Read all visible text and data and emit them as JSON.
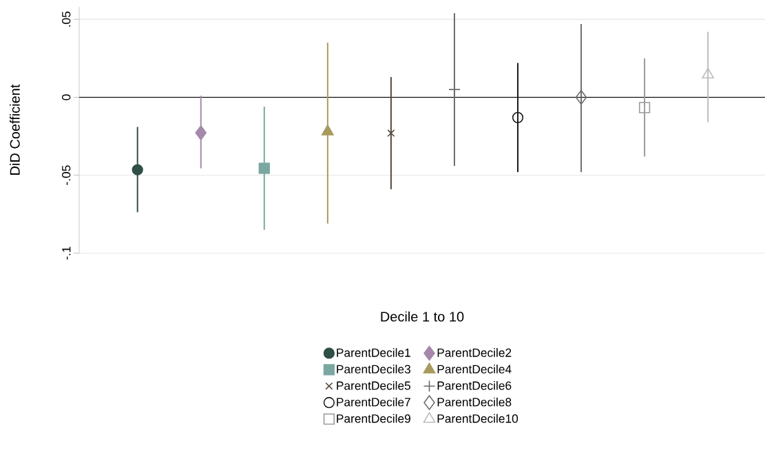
{
  "chart_data": {
    "type": "scatter",
    "xlabel": "Decile 1 to 10",
    "ylabel": "DiD Coefficient",
    "categories": [
      null,
      null,
      null,
      null,
      null,
      null,
      null,
      null,
      null,
      null
    ],
    "ylim": [
      -0.1,
      0.058
    ],
    "yticks": [
      {
        "value": -0.1,
        "label": "-.1"
      },
      {
        "value": -0.05,
        "label": "-.05"
      },
      {
        "value": 0,
        "label": "0"
      },
      {
        "value": 0.05,
        "label": ".05"
      }
    ],
    "grid": "y",
    "legend": "bottom",
    "ref_lines": [
      {
        "axis": "y",
        "value": 0,
        "color": "#000000"
      }
    ],
    "series": [
      {
        "name": "ParentDecile1",
        "color": "#2f4f47",
        "marker": "circle",
        "values": [
          -0.0465,
          null,
          null,
          null,
          null,
          null,
          null,
          null,
          null,
          null
        ],
        "errors": [
          [
            -0.0737,
            -0.019
          ],
          null,
          null,
          null,
          null,
          null,
          null,
          null,
          null,
          null
        ]
      },
      {
        "name": "ParentDecile2",
        "color": "#a688ac",
        "marker": "diamond",
        "values": [
          null,
          -0.0228,
          null,
          null,
          null,
          null,
          null,
          null,
          null,
          null
        ],
        "errors": [
          null,
          [
            -0.0456,
            0.001
          ],
          null,
          null,
          null,
          null,
          null,
          null,
          null,
          null
        ]
      },
      {
        "name": "ParentDecile3",
        "color": "#7aa8a0",
        "marker": "square",
        "values": [
          null,
          null,
          -0.0456,
          null,
          null,
          null,
          null,
          null,
          null,
          null
        ],
        "errors": [
          null,
          null,
          [
            -0.085,
            -0.006
          ],
          null,
          null,
          null,
          null,
          null,
          null,
          null
        ]
      },
      {
        "name": "ParentDecile4",
        "color": "#a89a5e",
        "marker": "triangle",
        "values": [
          null,
          null,
          null,
          -0.022,
          null,
          null,
          null,
          null,
          null,
          null
        ],
        "errors": [
          null,
          null,
          null,
          [
            -0.081,
            0.035
          ],
          null,
          null,
          null,
          null,
          null,
          null
        ]
      },
      {
        "name": "ParentDecile5",
        "color": "#54483a",
        "marker": "cross",
        "values": [
          null,
          null,
          null,
          null,
          -0.023,
          null,
          null,
          null,
          null,
          null
        ],
        "errors": [
          null,
          null,
          null,
          null,
          [
            -0.059,
            0.013
          ],
          null,
          null,
          null,
          null,
          null
        ]
      },
      {
        "name": "ParentDecile6",
        "color": "#6b6b6b",
        "marker": "plus",
        "values": [
          null,
          null,
          null,
          null,
          null,
          0.005,
          null,
          null,
          null,
          null
        ],
        "errors": [
          null,
          null,
          null,
          null,
          null,
          [
            -0.044,
            0.054
          ],
          null,
          null,
          null,
          null
        ]
      },
      {
        "name": "ParentDecile7",
        "color": "#1a1a1a",
        "marker": "circle_open",
        "values": [
          null,
          null,
          null,
          null,
          null,
          null,
          -0.013,
          null,
          null,
          null
        ],
        "errors": [
          null,
          null,
          null,
          null,
          null,
          null,
          [
            -0.048,
            0.022
          ],
          null,
          null,
          null
        ]
      },
      {
        "name": "ParentDecile8",
        "color": "#6e6e6e",
        "marker": "diamond_open",
        "values": [
          null,
          null,
          null,
          null,
          null,
          null,
          null,
          0.0,
          null,
          null
        ],
        "errors": [
          null,
          null,
          null,
          null,
          null,
          null,
          null,
          [
            -0.048,
            0.047
          ],
          null,
          null
        ]
      },
      {
        "name": "ParentDecile9",
        "color": "#9a9a9a",
        "marker": "square_open",
        "values": [
          null,
          null,
          null,
          null,
          null,
          null,
          null,
          null,
          -0.0066,
          null
        ],
        "errors": [
          null,
          null,
          null,
          null,
          null,
          null,
          null,
          null,
          [
            -0.038,
            0.025
          ],
          null
        ]
      },
      {
        "name": "ParentDecile10",
        "color": "#bdbdbd",
        "marker": "triangle_open",
        "values": [
          null,
          null,
          null,
          null,
          null,
          null,
          null,
          null,
          null,
          0.0145
        ],
        "errors": [
          null,
          null,
          null,
          null,
          null,
          null,
          null,
          null,
          null,
          [
            -0.016,
            0.042
          ]
        ]
      }
    ]
  }
}
